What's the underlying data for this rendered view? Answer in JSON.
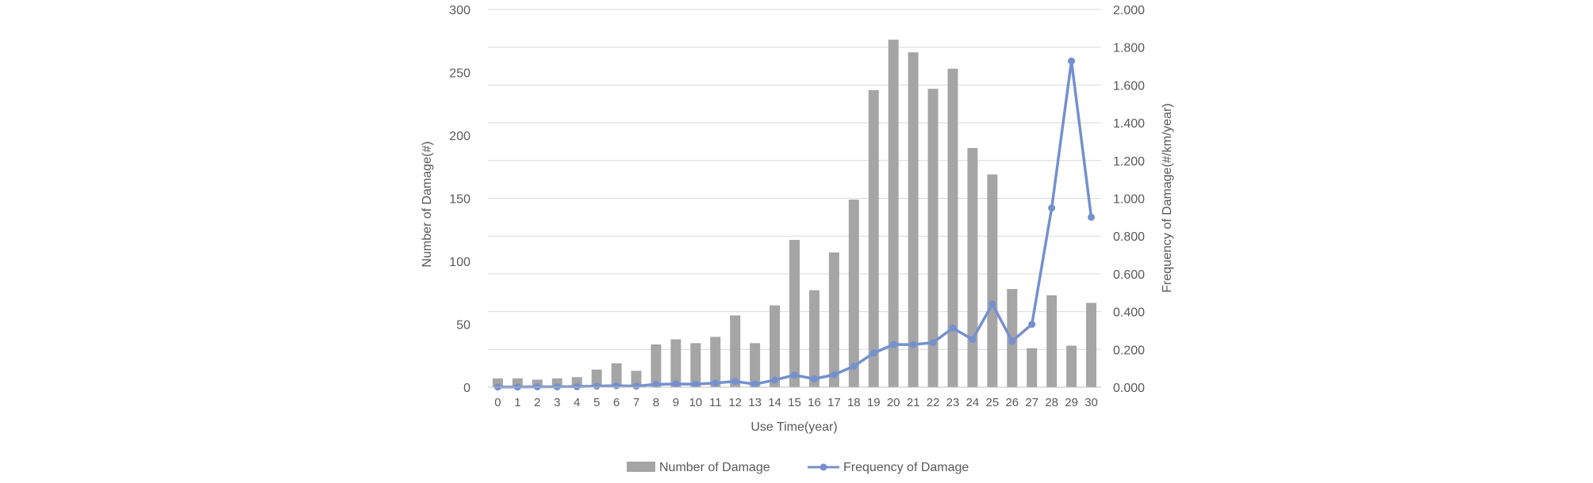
{
  "chart_data": {
    "type": "bar+line",
    "title": "",
    "xlabel": "Use Time(year)",
    "ylabel_left": "Number of Damage(#)",
    "ylabel_right": "Frequency of Damage(#/km/year)",
    "x": [
      0,
      1,
      2,
      3,
      4,
      5,
      6,
      7,
      8,
      9,
      10,
      11,
      12,
      13,
      14,
      15,
      16,
      17,
      18,
      19,
      20,
      21,
      22,
      23,
      24,
      25,
      26,
      27,
      28,
      29,
      30
    ],
    "left_axis": {
      "min": 0,
      "max": 300,
      "ticks": [
        "0",
        "50",
        "100",
        "150",
        "200",
        "250",
        "300"
      ]
    },
    "right_axis": {
      "min": 0,
      "max": 2.0,
      "ticks": [
        "0.000",
        "0.200",
        "0.400",
        "0.600",
        "0.800",
        "1.000",
        "1.200",
        "1.400",
        "1.600",
        "1.800",
        "2.000"
      ]
    },
    "grid": true,
    "legend_position": "bottom",
    "series": [
      {
        "name": "Number of Damage",
        "type": "bar",
        "axis": "left",
        "color": "#a5a5a5",
        "values": [
          7,
          7,
          6,
          7,
          8,
          14,
          19,
          13,
          34,
          38,
          35,
          40,
          57,
          35,
          65,
          117,
          77,
          107,
          149,
          236,
          276,
          266,
          237,
          253,
          190,
          169,
          78,
          31,
          73,
          33,
          67
        ]
      },
      {
        "name": "Frequency of Damage",
        "type": "line",
        "axis": "right",
        "color": "#7491ce",
        "values": [
          0.001,
          0.001,
          0.002,
          0.002,
          0.003,
          0.006,
          0.008,
          0.006,
          0.015,
          0.017,
          0.016,
          0.022,
          0.031,
          0.016,
          0.038,
          0.064,
          0.044,
          0.066,
          0.111,
          0.181,
          0.226,
          0.226,
          0.236,
          0.313,
          0.253,
          0.44,
          0.244,
          0.333,
          0.949,
          1.727,
          0.9
        ]
      }
    ]
  }
}
